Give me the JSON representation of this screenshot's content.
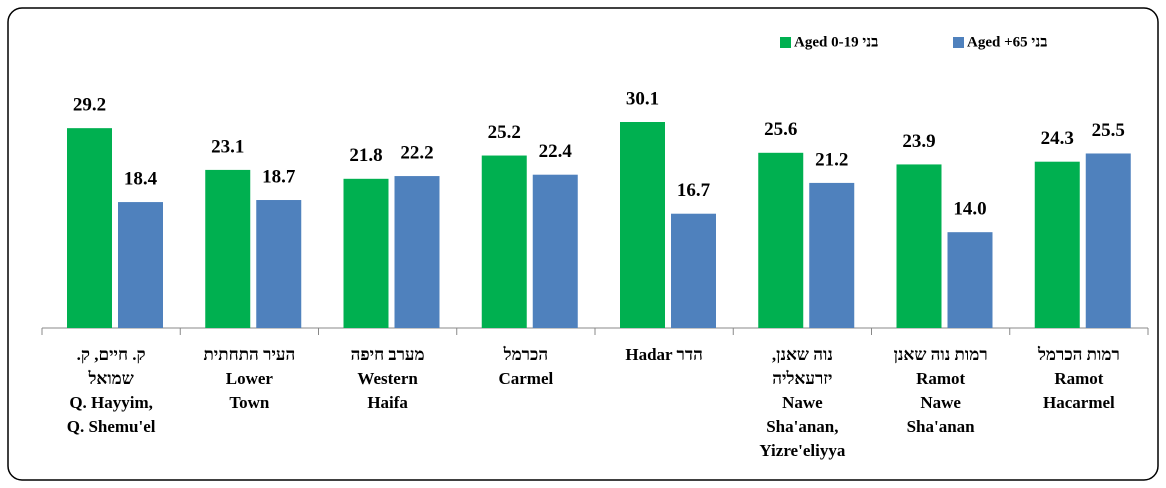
{
  "chart_data": {
    "type": "bar",
    "categories": [
      [
        "ק. חיים, ק.",
        "שמואל",
        "Q. Hayyim,",
        "Q. Shemu'el"
      ],
      [
        "העיר התחתית",
        "Lower",
        "Town"
      ],
      [
        "מערב חיפה",
        "Western",
        "Haifa"
      ],
      [
        "הכרמל",
        "Carmel"
      ],
      [
        "Hadar הדר"
      ],
      [
        "נוה שאנן,",
        "יזרעאליה",
        "Nawe",
        "Sha'anan,",
        "Yizre'eliyya"
      ],
      [
        "רמות נוה שאנן",
        "Ramot",
        "Nawe",
        "Sha'anan"
      ],
      [
        "רמות הכרמל",
        "Ramot",
        "Hacarmel"
      ]
    ],
    "series": [
      {
        "name": "Aged 0-19 בני",
        "color": "#00b050",
        "values": [
          29.2,
          23.1,
          21.8,
          25.2,
          30.1,
          25.6,
          23.9,
          24.3
        ],
        "value_labels": [
          "29.2",
          "23.1",
          "21.8",
          "25.2",
          "30.1",
          "25.6",
          "23.9",
          "24.3"
        ]
      },
      {
        "name": "Aged +65 בני",
        "color": "#4f81bd",
        "values": [
          18.4,
          18.7,
          22.2,
          22.4,
          16.7,
          21.2,
          14.0,
          25.5
        ],
        "value_labels": [
          "18.4",
          "18.7",
          "22.2",
          "22.4",
          "16.7",
          "21.2",
          "14.0",
          "25.5"
        ]
      }
    ],
    "legend": "top-right"
  }
}
